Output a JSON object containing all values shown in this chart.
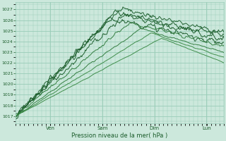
{
  "title": "Pression niveau de la mer( hPa )",
  "ylabel_values": [
    1017,
    1018,
    1019,
    1020,
    1021,
    1022,
    1023,
    1024,
    1025,
    1026,
    1027
  ],
  "ylim": [
    1016.3,
    1027.7
  ],
  "xlim": [
    0,
    1.0
  ],
  "x_ticks": [
    0.166,
    0.416,
    0.666,
    0.916
  ],
  "x_tick_labels": [
    "Ven",
    "Sam",
    "Dim",
    "Lun"
  ],
  "bg_color": "#cce8dc",
  "grid_color": "#99ccb8",
  "line_color_dark": "#1a5c2a",
  "line_color_mid": "#2d7a3a",
  "line_color_light": "#3a8a45",
  "n_points": 300
}
